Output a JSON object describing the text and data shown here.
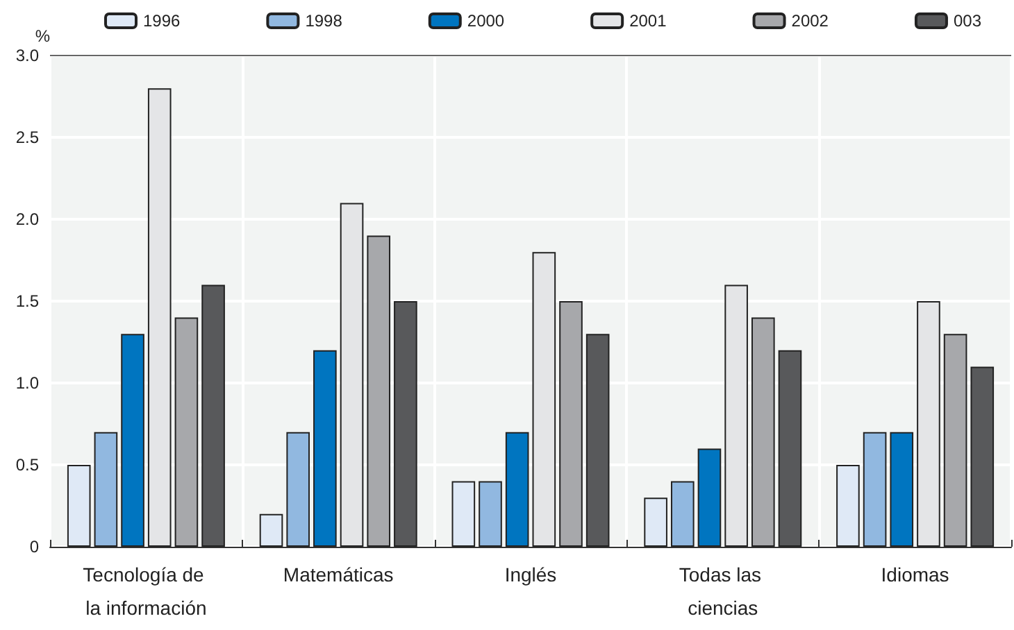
{
  "chart_data": {
    "type": "bar",
    "ylabel": "%",
    "categories": [
      "Tecnología de la información",
      "Matemáticas",
      "Inglés",
      "Todas las ciencias",
      "Idiomas"
    ],
    "series": [
      {
        "name": "1996",
        "color": "#dfe9f6",
        "values": [
          0.5,
          0.2,
          0.4,
          0.3,
          0.5
        ]
      },
      {
        "name": "1998",
        "color": "#91b8e0",
        "values": [
          0.7,
          0.7,
          0.4,
          0.4,
          0.7
        ]
      },
      {
        "name": "2000",
        "color": "#0075c0",
        "values": [
          1.3,
          1.2,
          0.7,
          0.6,
          0.7
        ]
      },
      {
        "name": "2001",
        "color": "#e4e5e7",
        "values": [
          2.8,
          2.1,
          1.8,
          1.6,
          1.5
        ]
      },
      {
        "name": "2002",
        "color": "#a7a8ab",
        "values": [
          1.4,
          1.9,
          1.5,
          1.4,
          1.3
        ]
      },
      {
        "name": "003",
        "color": "#58595b",
        "values": [
          1.6,
          1.5,
          1.3,
          1.2,
          1.1
        ]
      }
    ],
    "ylim": [
      0,
      3
    ],
    "yticks": [
      "0",
      {
        "value": 0.5,
        "label": "0.5"
      },
      {
        "value": 1,
        "label": "1.0"
      },
      {
        "value": 1.5,
        "label": "1.5"
      },
      {
        "value": 2,
        "label": "2.0"
      },
      {
        "value": 2.5,
        "label": "2.5"
      },
      {
        "value": 3,
        "label": "3.0"
      }
    ],
    "grid": true,
    "legend": "top"
  }
}
